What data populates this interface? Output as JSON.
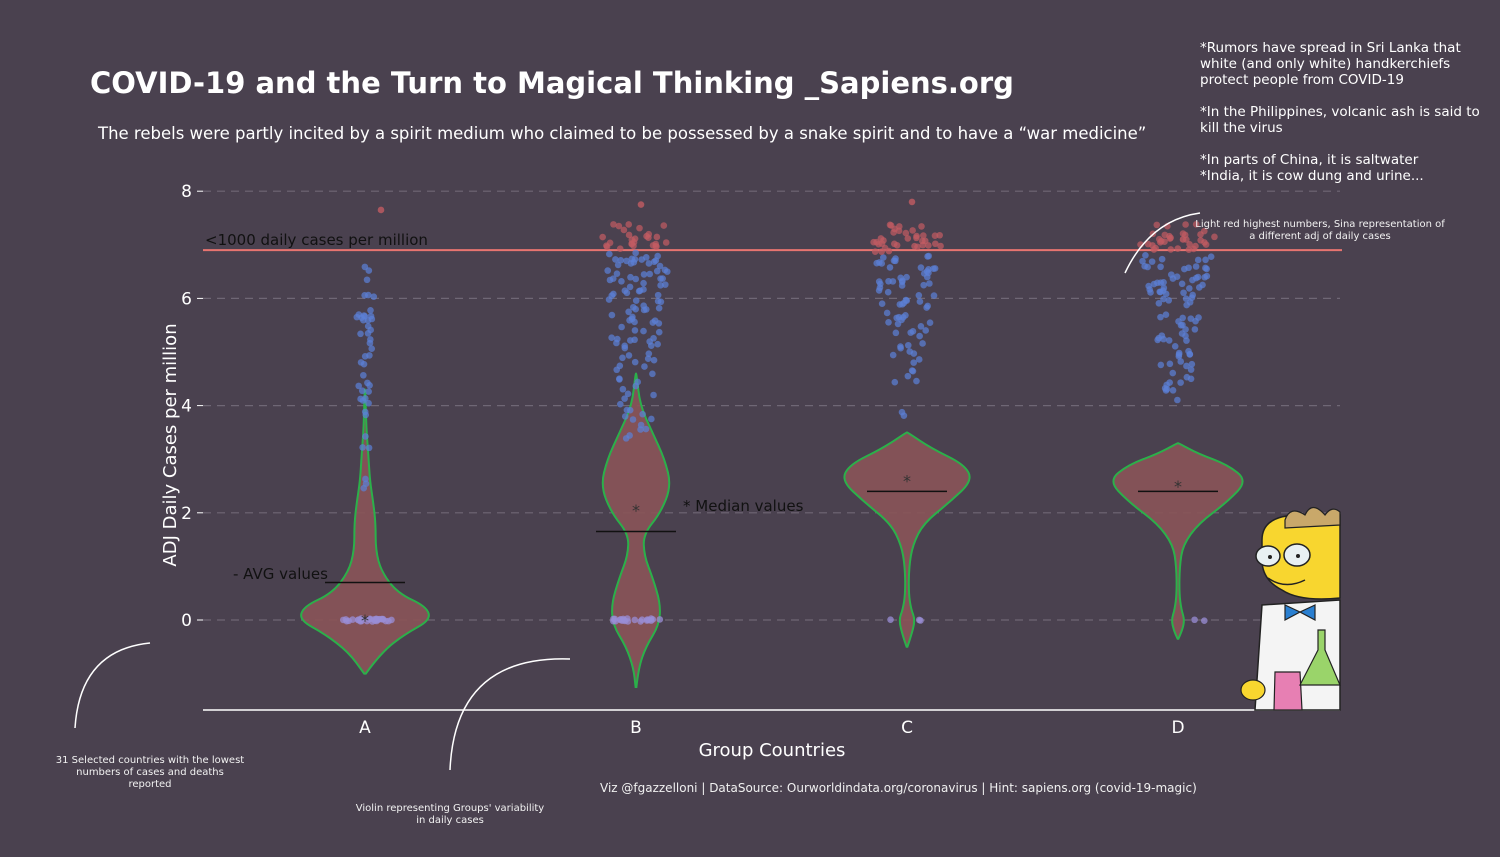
{
  "title": "COVID-19 and the Turn to Magical Thinking _Sapiens.org",
  "subtitle": "The rebels were partly incited by a spirit medium who claimed to be possessed by a snake spirit and to have a “war medicine”",
  "notes": [
    "*Rumors have spread in Sri Lanka that white (and only white) handkerchiefs protect people from COVID-19",
    "*In the Philippines, volcanic ash is said to kill the virus",
    "*In parts of China, it is saltwater\n*India, it is cow dung and urine..."
  ],
  "annotations": {
    "threshold_label": "<1000 daily cases per million",
    "avg_label": "- AVG values",
    "median_label": "* Median values",
    "light_red_note": "Light red highest numbers, Sina representation of a different adj of daily cases",
    "countries_note": "31 Selected countries with the lowest numbers of cases and deaths reported",
    "violin_note": "Violin representing Groups' variability in daily cases"
  },
  "caption": "Viz @fgazzelloni | DataSource: Ourworldindata.org/coronavirus | Hint: sapiens.org (covid-19-magic)",
  "colors": {
    "background": "#4a414f",
    "violin_fill": "#8a5458",
    "violin_stroke": "#2bb04a",
    "point_blue": "#5b7fd6",
    "point_red": "#c25b62",
    "point_zero": "#9a8ed6",
    "threshold_line": "#e87470",
    "grid": "#6f6775"
  },
  "chart_data": {
    "type": "violin",
    "xlabel": "Group Countries",
    "ylabel": "ADJ Daily Cases per million",
    "categories": [
      "A",
      "B",
      "C",
      "D"
    ],
    "y_ticks": [
      0,
      2,
      4,
      6,
      8
    ],
    "ylim": [
      -1.7,
      8.3
    ],
    "grid": "dashed horizontal",
    "threshold": 6.9,
    "groups": [
      {
        "name": "A",
        "avg": 0.7,
        "median": 0,
        "violin_range": [
          -1.0,
          4.3
        ],
        "violin_density": [
          [
            -1.0,
            0.01
          ],
          [
            -0.6,
            0.2
          ],
          [
            -0.25,
            0.5
          ],
          [
            0,
            0.8
          ],
          [
            0.25,
            0.75
          ],
          [
            0.5,
            0.4
          ],
          [
            0.9,
            0.2
          ],
          [
            1.3,
            0.13
          ],
          [
            1.8,
            0.13
          ],
          [
            2.2,
            0.1
          ],
          [
            2.6,
            0.06
          ],
          [
            3.1,
            0.04
          ],
          [
            3.6,
            0.015
          ],
          [
            4.3,
            0.005
          ]
        ],
        "points_summary": {
          "zero_cluster_count": 30,
          "range": [
            0,
            7.65
          ]
        }
      },
      {
        "name": "B",
        "avg": 1.65,
        "median": 2.05,
        "violin_range": [
          -1.25,
          4.6
        ],
        "violin_density": [
          [
            -1.25,
            0.005
          ],
          [
            -0.9,
            0.03
          ],
          [
            -0.5,
            0.12
          ],
          [
            -0.1,
            0.28
          ],
          [
            0.3,
            0.3
          ],
          [
            0.8,
            0.2
          ],
          [
            1.2,
            0.1
          ],
          [
            1.6,
            0.09
          ],
          [
            2.0,
            0.3
          ],
          [
            2.5,
            0.43
          ],
          [
            3.0,
            0.35
          ],
          [
            3.5,
            0.2
          ],
          [
            4.0,
            0.05
          ],
          [
            4.6,
            0.005
          ]
        ],
        "points_summary": {
          "zero_cluster_count": 22,
          "range": [
            0,
            7.75
          ]
        }
      },
      {
        "name": "C",
        "avg": 2.4,
        "median": 2.6,
        "violin_range": [
          -0.5,
          3.5
        ],
        "violin_density": [
          [
            -0.5,
            0.005
          ],
          [
            -0.3,
            0.05
          ],
          [
            0,
            0.1
          ],
          [
            0.2,
            0.05
          ],
          [
            0.5,
            0.02
          ],
          [
            1.0,
            0.025
          ],
          [
            1.4,
            0.07
          ],
          [
            1.8,
            0.2
          ],
          [
            2.2,
            0.52
          ],
          [
            2.6,
            0.8
          ],
          [
            2.9,
            0.7
          ],
          [
            3.2,
            0.3
          ],
          [
            3.5,
            0.005
          ]
        ],
        "points_summary": {
          "zero_cluster_count": 3,
          "range": [
            0,
            7.8
          ]
        }
      },
      {
        "name": "D",
        "avg": 2.4,
        "median": 2.5,
        "violin_range": [
          -0.35,
          3.3
        ],
        "violin_density": [
          [
            -0.35,
            0.005
          ],
          [
            -0.2,
            0.05
          ],
          [
            0,
            0.08
          ],
          [
            0.2,
            0.04
          ],
          [
            0.5,
            0.015
          ],
          [
            1.0,
            0.02
          ],
          [
            1.4,
            0.06
          ],
          [
            1.8,
            0.25
          ],
          [
            2.2,
            0.6
          ],
          [
            2.6,
            0.85
          ],
          [
            2.9,
            0.6
          ],
          [
            3.1,
            0.25
          ],
          [
            3.3,
            0.005
          ]
        ],
        "points_summary": {
          "zero_cluster_count": 2,
          "range": [
            0,
            7.1
          ]
        }
      }
    ]
  }
}
